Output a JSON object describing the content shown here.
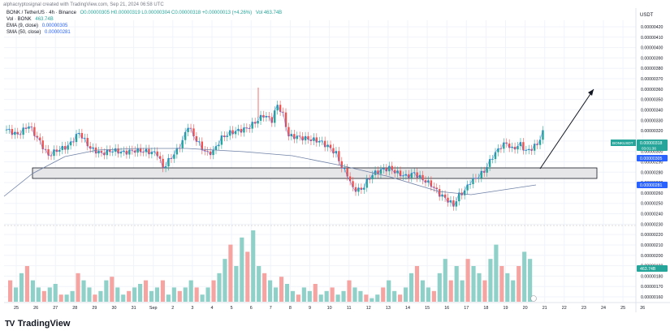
{
  "header": {
    "publisher_line": "alphacryptosignal created with TradingView.com, Sep 21, 2024 06:58 UTC"
  },
  "legend": {
    "symbol_line": "BONK / TetherUS · 4h · Binance",
    "ohlc": "O0.00000305 H0.00000319 L0.00000304 C0.00000318 +0.00000013 (+4.26%)",
    "ohlc_volume": "Vol 463.74B",
    "volume_line": "Vol · BONK",
    "volume_value": "463.74B",
    "ema_line": "EMA (9, close)",
    "ema_value": "0.00000305",
    "sma_line": "SMA (50, close)",
    "sma_value": "0.00000281"
  },
  "currency_label": "USDT",
  "footer": {
    "logo_glyph": "TV",
    "brand": "TradingView"
  },
  "colors": {
    "up": "#26a69a",
    "down": "#ef5350",
    "up_vol": "#8fd1c9",
    "down_vol": "#f5a4a2",
    "ema": "#2962ff",
    "sma": "#6f81a6",
    "price_tag": "#26a69a",
    "axis_text": "#131722"
  },
  "chart_data": {
    "type": "candlestick",
    "title": "BONK / TetherUS · 4h · Binance",
    "x_axis_labels": [
      "25",
      "26",
      "27",
      "28",
      "29",
      "30",
      "31",
      "Sep",
      "2",
      "3",
      "4",
      "5",
      "6",
      "7",
      "8",
      "9",
      "10",
      "11",
      "12",
      "13",
      "14",
      "15",
      "16",
      "17",
      "18",
      "19",
      "20",
      "21",
      "22",
      "23",
      "24",
      "25",
      "26"
    ],
    "y_axis_labels": [
      "0.00000420",
      "0.00000410",
      "0.00000400",
      "0.00000390",
      "0.00000380",
      "0.00000370",
      "0.00000360",
      "0.00000350",
      "0.00000340",
      "0.00000330",
      "0.00000320",
      "0.00000310",
      "0.00000300",
      "0.00000290",
      "0.00000280",
      "0.00000270",
      "0.00000260",
      "0.00000250",
      "0.00000240",
      "0.00000230",
      "0.00000220",
      "0.00000210",
      "0.00000200",
      "0.00000190",
      "0.00000180",
      "0.00000170",
      "0.00000160"
    ],
    "price_tags": [
      {
        "label": "BONKUSDT",
        "value": "0.00000318",
        "sub": "03:01:36",
        "color": "#26a69a"
      },
      {
        "label": "",
        "value": "0.00000305",
        "sub": "",
        "color": "#2962ff"
      },
      {
        "label": "",
        "value": "0.00000281",
        "sub": "",
        "color": "#2962ff"
      },
      {
        "label": "",
        "value": "463.74B",
        "sub": "",
        "color": "#26a69a"
      }
    ],
    "close_path": [
      [
        0,
        3.21e-06
      ],
      [
        4,
        3.16e-06
      ],
      [
        8,
        3.25e-06
      ],
      [
        12,
        3.09e-06
      ],
      [
        15,
        2.96e-06
      ],
      [
        18,
        3.01e-06
      ],
      [
        22,
        3.05e-06
      ],
      [
        26,
        3.18e-06
      ],
      [
        30,
        3.03e-06
      ],
      [
        34,
        2.98e-06
      ],
      [
        38,
        3.01e-06
      ],
      [
        42,
        2.99e-06
      ],
      [
        46,
        3.01e-06
      ],
      [
        50,
        3e-06
      ],
      [
        54,
        2.98e-06
      ],
      [
        56,
        2.84e-06
      ],
      [
        58,
        2.91e-06
      ],
      [
        61,
        3.01e-06
      ],
      [
        63,
        3.1e-06
      ],
      [
        65,
        3.25e-06
      ],
      [
        67,
        3.15e-06
      ],
      [
        70,
        3.03e-06
      ],
      [
        72,
        2.98e-06
      ],
      [
        74,
        3e-06
      ],
      [
        77,
        3.13e-06
      ],
      [
        80,
        3.18e-06
      ],
      [
        83,
        3.2e-06
      ],
      [
        86,
        3.22e-06
      ],
      [
        89,
        3.28e-06
      ],
      [
        92,
        3.35e-06
      ],
      [
        95,
        3.3e-06
      ],
      [
        97,
        3.45e-06
      ],
      [
        99,
        3.35e-06
      ],
      [
        101,
        3.15e-06
      ],
      [
        104,
        3.14e-06
      ],
      [
        108,
        3.12e-06
      ],
      [
        112,
        3.1e-06
      ],
      [
        115,
        3.05e-06
      ],
      [
        118,
        2.98e-06
      ],
      [
        120,
        2.85e-06
      ],
      [
        122,
        2.78e-06
      ],
      [
        124,
        2.64e-06
      ],
      [
        127,
        2.63e-06
      ],
      [
        129,
        2.71e-06
      ],
      [
        131,
        2.78e-06
      ],
      [
        134,
        2.82e-06
      ],
      [
        137,
        2.84e-06
      ],
      [
        140,
        2.79e-06
      ],
      [
        143,
        2.76e-06
      ],
      [
        146,
        2.79e-06
      ],
      [
        149,
        2.73e-06
      ],
      [
        152,
        2.68e-06
      ],
      [
        155,
        2.59e-06
      ],
      [
        158,
        2.53e-06
      ],
      [
        160,
        2.48e-06
      ],
      [
        162,
        2.58e-06
      ],
      [
        164,
        2.62e-06
      ],
      [
        166,
        2.71e-06
      ],
      [
        168,
        2.74e-06
      ],
      [
        171,
        2.81e-06
      ],
      [
        174,
        2.95e-06
      ],
      [
        177,
        3.05e-06
      ],
      [
        179,
        3.08e-06
      ],
      [
        181,
        3.02e-06
      ],
      [
        184,
        3.07e-06
      ],
      [
        186,
        3e-06
      ],
      [
        188,
        3.03e-06
      ],
      [
        190,
        3.07e-06
      ],
      [
        192,
        3.18e-06
      ]
    ],
    "volume_profile": [
      0.3,
      0.2,
      0.4,
      0.5,
      0.3,
      0.2,
      0.15,
      0.2,
      0.25,
      0.1,
      0.1,
      0.15,
      0.4,
      0.3,
      0.2,
      0.1,
      0.15,
      0.3,
      0.35,
      0.2,
      0.1,
      0.15,
      0.2,
      0.25,
      0.3,
      0.15,
      0.2,
      0.3,
      0.1,
      0.2,
      0.15,
      0.2,
      0.3,
      0.2,
      0.1,
      0.2,
      0.3,
      0.4,
      0.6,
      0.8,
      0.5,
      0.9,
      0.7,
      1.0,
      0.5,
      0.4,
      0.3,
      0.2,
      0.35,
      0.25,
      0.15,
      0.1,
      0.2,
      0.15,
      0.25,
      0.1,
      0.15,
      0.2,
      0.1,
      0.15,
      0.3,
      0.2,
      0.15,
      0.1,
      0.05,
      0.1,
      0.2,
      0.3,
      0.15,
      0.1,
      0.2,
      0.4,
      0.5,
      0.3,
      0.2,
      0.15,
      0.4,
      0.6,
      0.3,
      0.5,
      0.3,
      0.6,
      0.5,
      0.4,
      0.3,
      0.6,
      0.8,
      0.5,
      0.4,
      0.3,
      0.5,
      0.7,
      0.6
    ]
  }
}
